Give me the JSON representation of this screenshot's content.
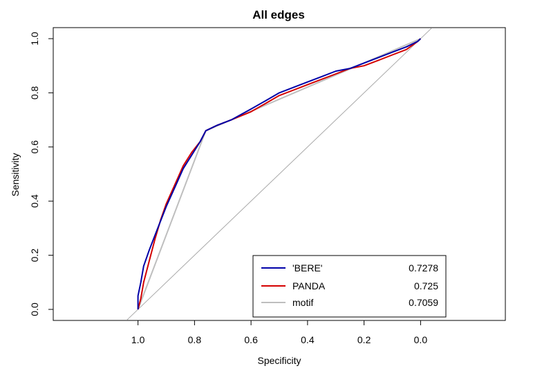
{
  "chart_data": {
    "type": "line",
    "title": "All edges",
    "xlabel": "Specificity",
    "ylabel": "Sensitivity",
    "x_reversed": true,
    "xlim": [
      1.3,
      -0.3
    ],
    "ylim": [
      0.0,
      1.0
    ],
    "x_ticks": [
      "1.0",
      "0.8",
      "0.6",
      "0.4",
      "0.2",
      "0.0"
    ],
    "x_tick_values": [
      1.0,
      0.8,
      0.6,
      0.4,
      0.2,
      0.0
    ],
    "y_ticks": [
      "0.0",
      "0.2",
      "0.4",
      "0.6",
      "0.8",
      "1.0"
    ],
    "y_tick_values": [
      0.0,
      0.2,
      0.4,
      0.6,
      0.8,
      1.0
    ],
    "grid": false,
    "legend_position": "bottom-right",
    "reference_line": {
      "x": [
        1.04,
        -0.04
      ],
      "y": [
        -0.04,
        1.04
      ],
      "color": "#a8a8a8"
    },
    "series": [
      {
        "name": "'BERE'",
        "auc": "0.7278",
        "color": "#0000a8",
        "x": [
          1.0,
          1.0,
          0.99,
          0.98,
          0.96,
          0.93,
          0.9,
          0.87,
          0.84,
          0.81,
          0.78,
          0.76,
          0.72,
          0.67,
          0.6,
          0.55,
          0.5,
          0.45,
          0.4,
          0.35,
          0.3,
          0.25,
          0.2,
          0.15,
          0.1,
          0.05,
          0.01,
          0.0
        ],
        "y": [
          0.0,
          0.05,
          0.1,
          0.16,
          0.22,
          0.3,
          0.38,
          0.45,
          0.52,
          0.57,
          0.62,
          0.66,
          0.68,
          0.7,
          0.74,
          0.77,
          0.8,
          0.82,
          0.84,
          0.86,
          0.88,
          0.89,
          0.91,
          0.93,
          0.95,
          0.97,
          0.99,
          1.0
        ]
      },
      {
        "name": "PANDA",
        "auc": "0.725",
        "color": "#d40000",
        "x": [
          1.0,
          0.99,
          0.98,
          0.96,
          0.94,
          0.92,
          0.9,
          0.87,
          0.84,
          0.81,
          0.78,
          0.76,
          0.72,
          0.67,
          0.6,
          0.55,
          0.5,
          0.45,
          0.4,
          0.35,
          0.3,
          0.25,
          0.2,
          0.15,
          0.1,
          0.05,
          0.01,
          0.0
        ],
        "y": [
          0.0,
          0.04,
          0.1,
          0.18,
          0.26,
          0.33,
          0.39,
          0.46,
          0.53,
          0.58,
          0.62,
          0.66,
          0.68,
          0.7,
          0.73,
          0.76,
          0.79,
          0.81,
          0.83,
          0.85,
          0.87,
          0.89,
          0.9,
          0.92,
          0.94,
          0.96,
          0.99,
          1.0
        ]
      },
      {
        "name": "motif",
        "auc": "0.7059",
        "color": "#bebebe",
        "x": [
          1.0,
          0.76,
          0.0
        ],
        "y": [
          0.0,
          0.66,
          1.0
        ]
      }
    ]
  }
}
